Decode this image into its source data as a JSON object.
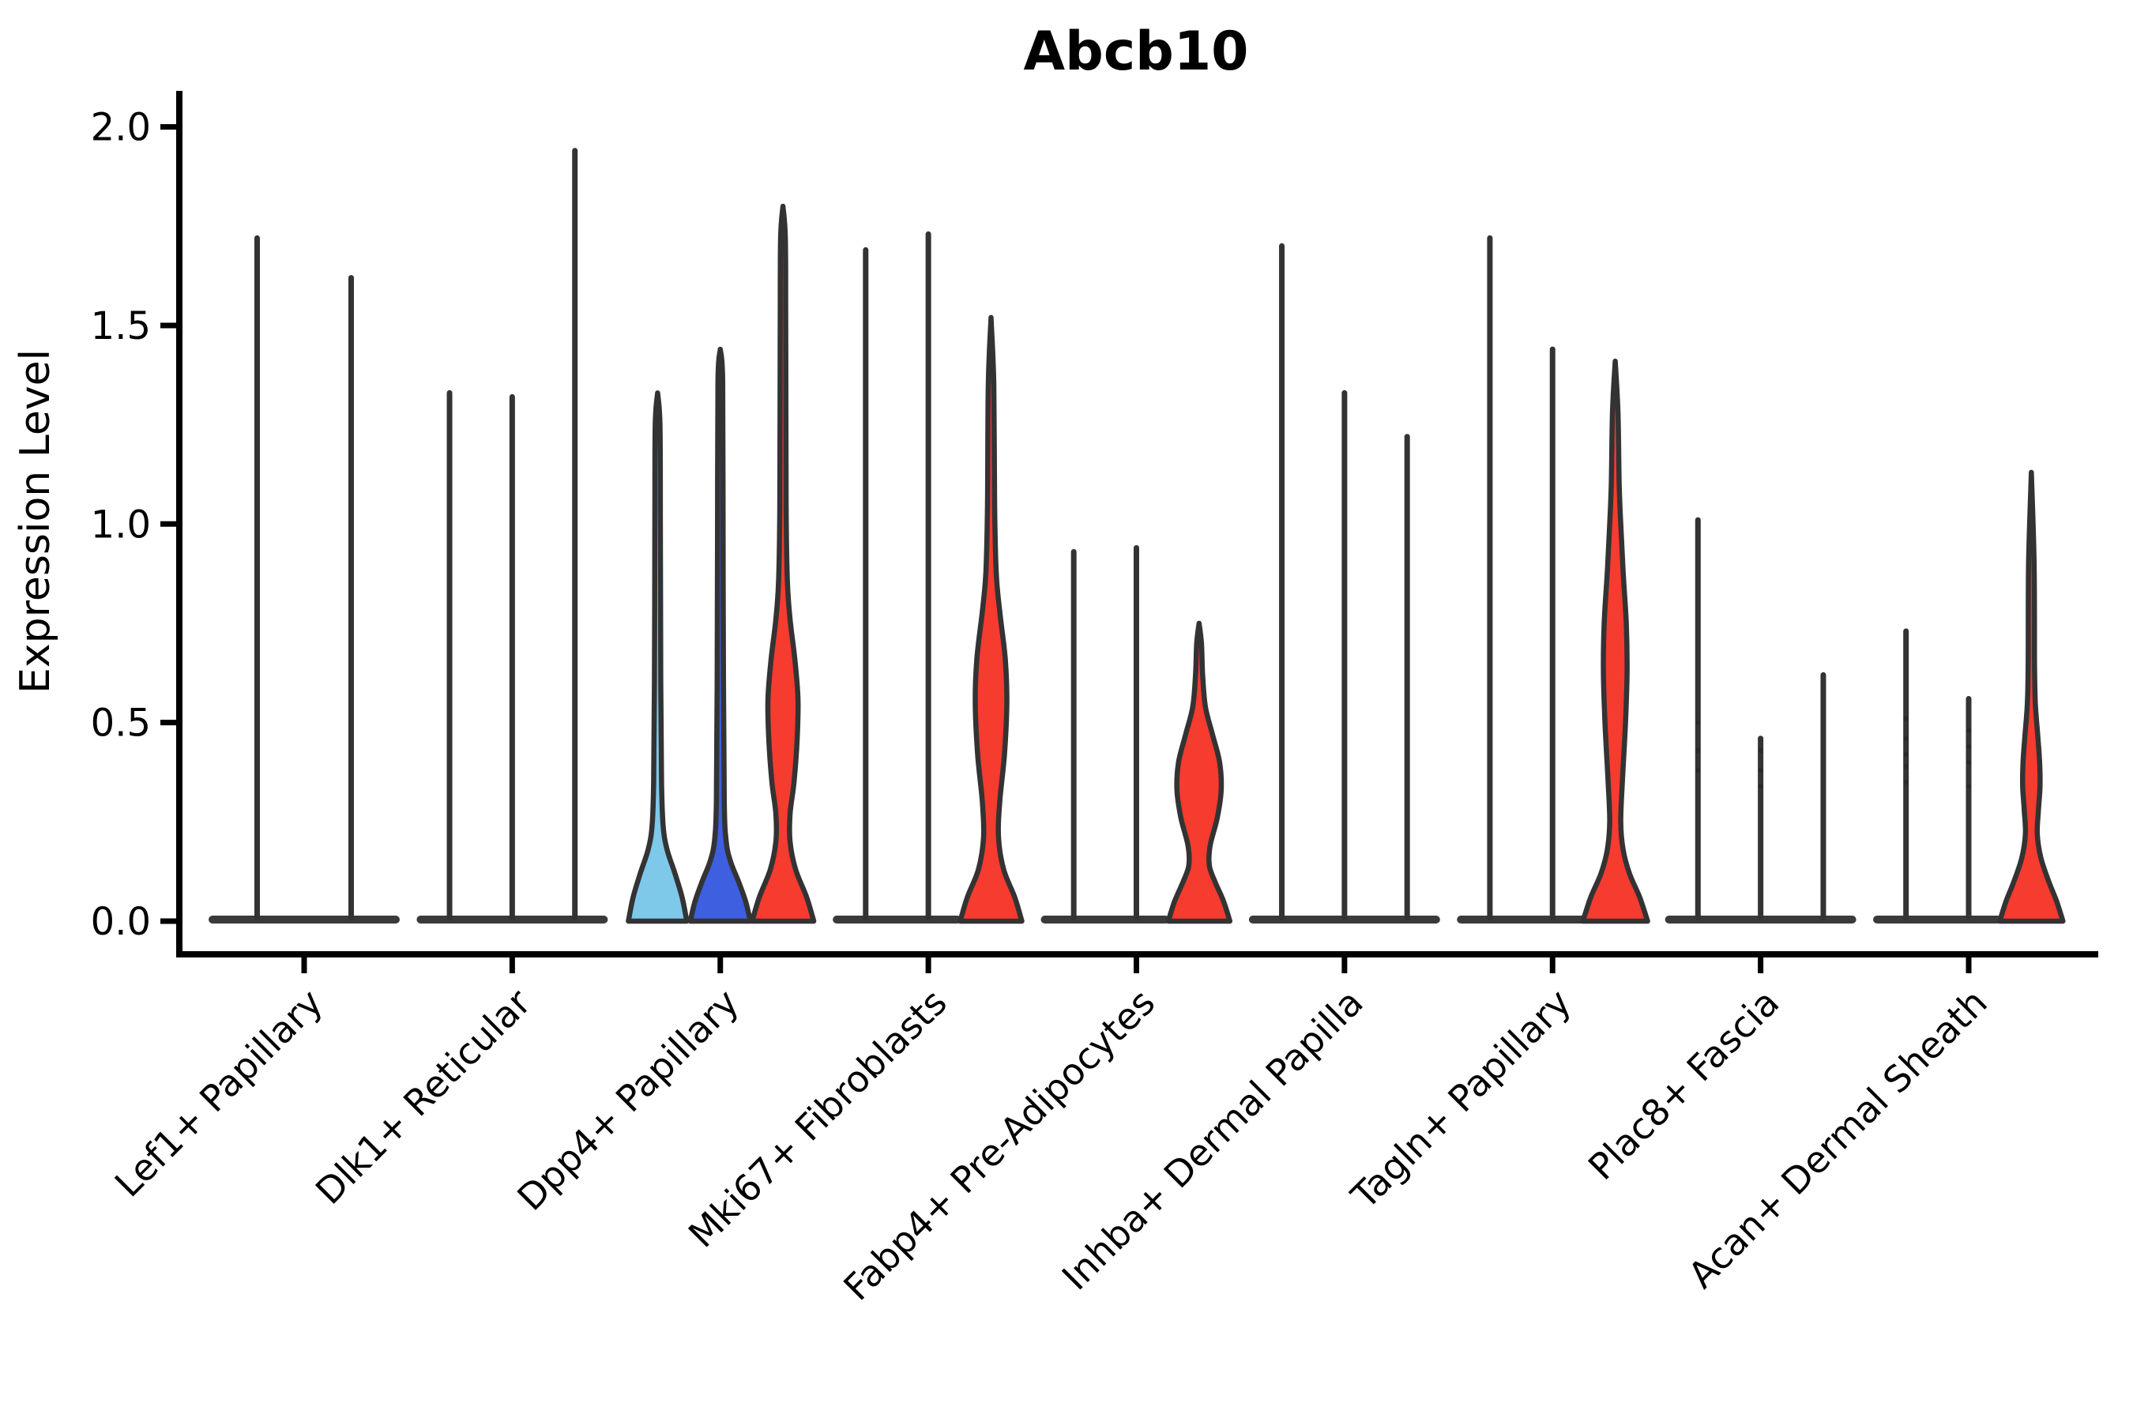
{
  "title": "Abcb10",
  "ylabel": "Expression Level",
  "colors": {
    "red": "#F63B2F",
    "blue": "#3D5FE0",
    "skyblue": "#7EC8EA",
    "white": "#FFFFFF",
    "outline": "#333333",
    "axis": "#000000"
  },
  "chart_data": {
    "type": "violin",
    "title": "Abcb10",
    "xlabel": "",
    "ylabel": "Expression Level",
    "ylim": [
      0,
      2.0
    ],
    "yticks": [
      "0.0",
      "0.5",
      "1.0",
      "1.5",
      "2.0"
    ],
    "ytick_values": [
      0.0,
      0.5,
      1.0,
      1.5,
      2.0
    ],
    "grid": false,
    "legend": "none",
    "categories": [
      "Lef1+ Papillary",
      "Dlk1+ Reticular",
      "Dpp4+ Papillary",
      "Mki67+ Fibroblasts",
      "Fabp4+ Pre-Adipocytes",
      "Inhba+ Dermal Papilla",
      "Tagln+ Papillary",
      "Plac8+ Fascia",
      "Acan+ Dermal Sheath"
    ],
    "groups": [
      {
        "category": "Lef1+ Papillary",
        "violins": [
          {
            "max": 1.72,
            "fill": "white"
          },
          {
            "max": 1.62,
            "fill": "white"
          }
        ]
      },
      {
        "category": "Dlk1+ Reticular",
        "violins": [
          {
            "max": 1.33,
            "fill": "white"
          },
          {
            "max": 1.32,
            "fill": "white"
          },
          {
            "max": 1.94,
            "fill": "white"
          }
        ]
      },
      {
        "category": "Dpp4+ Papillary",
        "violins": [
          {
            "max": 1.33,
            "fill": "skyblue",
            "profile": [
              [
                0,
                37
              ],
              [
                0.06,
                31
              ],
              [
                0.12,
                22
              ],
              [
                0.18,
                12
              ],
              [
                0.24,
                7
              ],
              [
                0.35,
                5
              ],
              [
                0.6,
                4
              ],
              [
                1.0,
                3.5
              ],
              [
                1.25,
                3
              ],
              [
                1.33,
                0
              ]
            ]
          },
          {
            "max": 1.44,
            "fill": "blue",
            "profile": [
              [
                0,
                38
              ],
              [
                0.05,
                32
              ],
              [
                0.1,
                23
              ],
              [
                0.15,
                13
              ],
              [
                0.2,
                7.5
              ],
              [
                0.3,
                5
              ],
              [
                0.6,
                4
              ],
              [
                1.0,
                3.5
              ],
              [
                1.36,
                3
              ],
              [
                1.44,
                0
              ]
            ]
          },
          {
            "max": 1.8,
            "fill": "red",
            "profile": [
              [
                0,
                39
              ],
              [
                0.06,
                30
              ],
              [
                0.13,
                16
              ],
              [
                0.2,
                9
              ],
              [
                0.27,
                9
              ],
              [
                0.35,
                14
              ],
              [
                0.46,
                18
              ],
              [
                0.56,
                19
              ],
              [
                0.66,
                15
              ],
              [
                0.76,
                9
              ],
              [
                0.86,
                5.5
              ],
              [
                1.05,
                4
              ],
              [
                1.5,
                3.5
              ],
              [
                1.72,
                3
              ],
              [
                1.8,
                0
              ]
            ]
          }
        ]
      },
      {
        "category": "Mki67+ Fibroblasts",
        "violins": [
          {
            "max": 1.69,
            "fill": "white"
          },
          {
            "max": 1.73,
            "fill": "white"
          },
          {
            "max": 1.52,
            "fill": "red",
            "profile": [
              [
                0,
                39
              ],
              [
                0.06,
                30
              ],
              [
                0.13,
                16
              ],
              [
                0.21,
                9.5
              ],
              [
                0.3,
                11
              ],
              [
                0.42,
                17
              ],
              [
                0.55,
                20
              ],
              [
                0.66,
                18
              ],
              [
                0.78,
                11
              ],
              [
                0.88,
                6.5
              ],
              [
                1.05,
                4.5
              ],
              [
                1.35,
                3.5
              ],
              [
                1.52,
                0
              ]
            ]
          }
        ]
      },
      {
        "category": "Fabp4+ Pre-Adipocytes",
        "violins": [
          {
            "max": 0.93,
            "fill": "white"
          },
          {
            "max": 0.94,
            "fill": "white"
          },
          {
            "max": 0.75,
            "fill": "red",
            "profile": [
              [
                0,
                39
              ],
              [
                0.05,
                31
              ],
              [
                0.1,
                20
              ],
              [
                0.14,
                13
              ],
              [
                0.19,
                14
              ],
              [
                0.26,
                23
              ],
              [
                0.33,
                28
              ],
              [
                0.4,
                26
              ],
              [
                0.47,
                17
              ],
              [
                0.54,
                8
              ],
              [
                0.62,
                4.5
              ],
              [
                0.7,
                3
              ],
              [
                0.75,
                0
              ]
            ]
          }
        ]
      },
      {
        "category": "Inhba+ Dermal Papilla",
        "violins": [
          {
            "max": 1.7,
            "fill": "white"
          },
          {
            "max": 1.33,
            "fill": "white"
          },
          {
            "max": 1.22,
            "fill": "white"
          }
        ]
      },
      {
        "category": "Tagln+ Papillary",
        "violins": [
          {
            "max": 1.72,
            "fill": "white"
          },
          {
            "max": 1.44,
            "fill": "white"
          },
          {
            "max": 1.41,
            "fill": "red",
            "profile": [
              [
                0,
                41
              ],
              [
                0.06,
                31
              ],
              [
                0.12,
                18
              ],
              [
                0.18,
                10
              ],
              [
                0.25,
                7
              ],
              [
                0.35,
                9
              ],
              [
                0.5,
                13
              ],
              [
                0.63,
                15
              ],
              [
                0.75,
                14
              ],
              [
                0.88,
                10
              ],
              [
                1.0,
                7
              ],
              [
                1.1,
                5
              ],
              [
                1.28,
                3.5
              ],
              [
                1.41,
                0
              ]
            ]
          }
        ]
      },
      {
        "category": "Plac8+ Fascia",
        "violins": [
          {
            "max": 1.01,
            "fill": "white",
            "dots": [
              0.5,
              0.43,
              0.38
            ]
          },
          {
            "max": 0.46,
            "fill": "white",
            "dots": [
              0.43,
              0.38,
              0.34
            ]
          },
          {
            "max": 0.62,
            "fill": "white"
          }
        ]
      },
      {
        "category": "Acan+ Dermal Sheath",
        "violins": [
          {
            "max": 0.73,
            "fill": "white",
            "dots": [
              0.51,
              0.46,
              0.42,
              0.39,
              0.35
            ]
          },
          {
            "max": 0.56,
            "fill": "white",
            "dots": [
              0.48,
              0.44,
              0.4,
              0.34
            ]
          },
          {
            "max": 1.13,
            "fill": "red",
            "profile": [
              [
                0,
                40
              ],
              [
                0.05,
                32
              ],
              [
                0.1,
                22
              ],
              [
                0.16,
                12
              ],
              [
                0.22,
                7.5
              ],
              [
                0.28,
                9
              ],
              [
                0.34,
                11
              ],
              [
                0.4,
                10.5
              ],
              [
                0.47,
                8
              ],
              [
                0.55,
                5
              ],
              [
                0.65,
                4
              ],
              [
                0.9,
                3.5
              ],
              [
                1.13,
                0
              ]
            ]
          }
        ]
      }
    ]
  }
}
